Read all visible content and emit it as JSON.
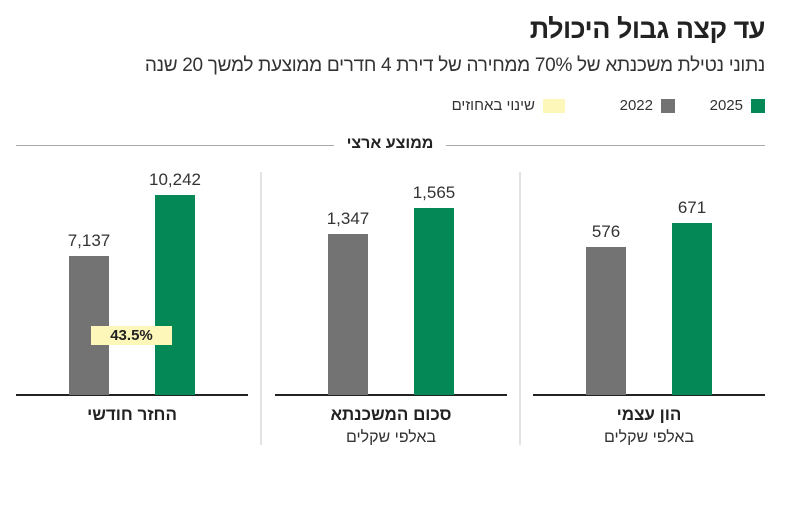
{
  "title": "עד קצה גבול היכולת",
  "subtitle": "נתוני נטילת משכנתא של 70% ממחירה של דירת 4 חדרים ממוצעת למשך 20 שנה",
  "legend": [
    {
      "label": "2025",
      "color": "#038856"
    },
    {
      "label": "2022",
      "color": "#737373"
    },
    {
      "label": "שינוי באחוזים",
      "color": "#fdf7b9"
    }
  ],
  "section": "ממוצע ארצי",
  "chart_data": [
    {
      "type": "bar",
      "title": "הון עצמי",
      "unit": "באלפי שקלים",
      "categories": [
        "2022",
        "2025"
      ],
      "values": [
        576,
        671
      ],
      "value_labels": [
        "576",
        "671"
      ],
      "ylim": [
        0,
        780
      ]
    },
    {
      "type": "bar",
      "title": "סכום המשכנתא",
      "unit": "באלפי שקלים",
      "categories": [
        "2022",
        "2025"
      ],
      "values": [
        1347,
        1565
      ],
      "value_labels": [
        "1,347",
        "1,565"
      ],
      "ylim": [
        0,
        1674
      ]
    },
    {
      "type": "bar",
      "title": "החזר חודשי",
      "unit": "",
      "categories": [
        "2022",
        "2025"
      ],
      "values": [
        7137,
        10242
      ],
      "value_labels": [
        "7,137",
        "10,242"
      ],
      "ylim": [
        0,
        10242
      ],
      "change_label": "43.5%"
    }
  ]
}
